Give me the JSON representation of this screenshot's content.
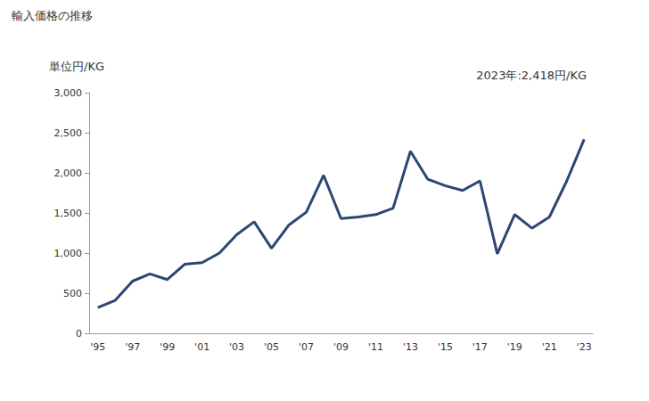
{
  "chart_data": {
    "type": "line",
    "title": "輸入価格の推移",
    "ylabel": "単位円/KG",
    "annotations": [
      "2023年:2,418円/KG"
    ],
    "categories": [
      "'95",
      null,
      "'97",
      null,
      "'99",
      null,
      "'01",
      null,
      "'03",
      null,
      "'05",
      null,
      "'07",
      null,
      "'09",
      null,
      "'11",
      null,
      "'13",
      null,
      "'15",
      null,
      "'17",
      null,
      "'19",
      null,
      "'21",
      null,
      "'23"
    ],
    "values": [
      320,
      410,
      650,
      740,
      670,
      860,
      880,
      1000,
      1230,
      1390,
      1060,
      1350,
      1510,
      1970,
      1430,
      1450,
      1480,
      1560,
      2270,
      1920,
      1840,
      1780,
      1900,
      990,
      1480,
      1310,
      1450,
      1900,
      2418
    ],
    "color": "#2c4770",
    "ylim": [
      0,
      3000
    ],
    "yticks": [
      0,
      500,
      {
        "value": 1000,
        "label": "1,000"
      },
      {
        "value": 1500,
        "label": "1,500"
      },
      {
        "value": 2000,
        "label": "2,000"
      },
      {
        "value": 2500,
        "label": "2,500"
      },
      {
        "value": 3000,
        "label": "3,000"
      }
    ],
    "grid": false,
    "marker": "none",
    "line_style": "solid"
  }
}
